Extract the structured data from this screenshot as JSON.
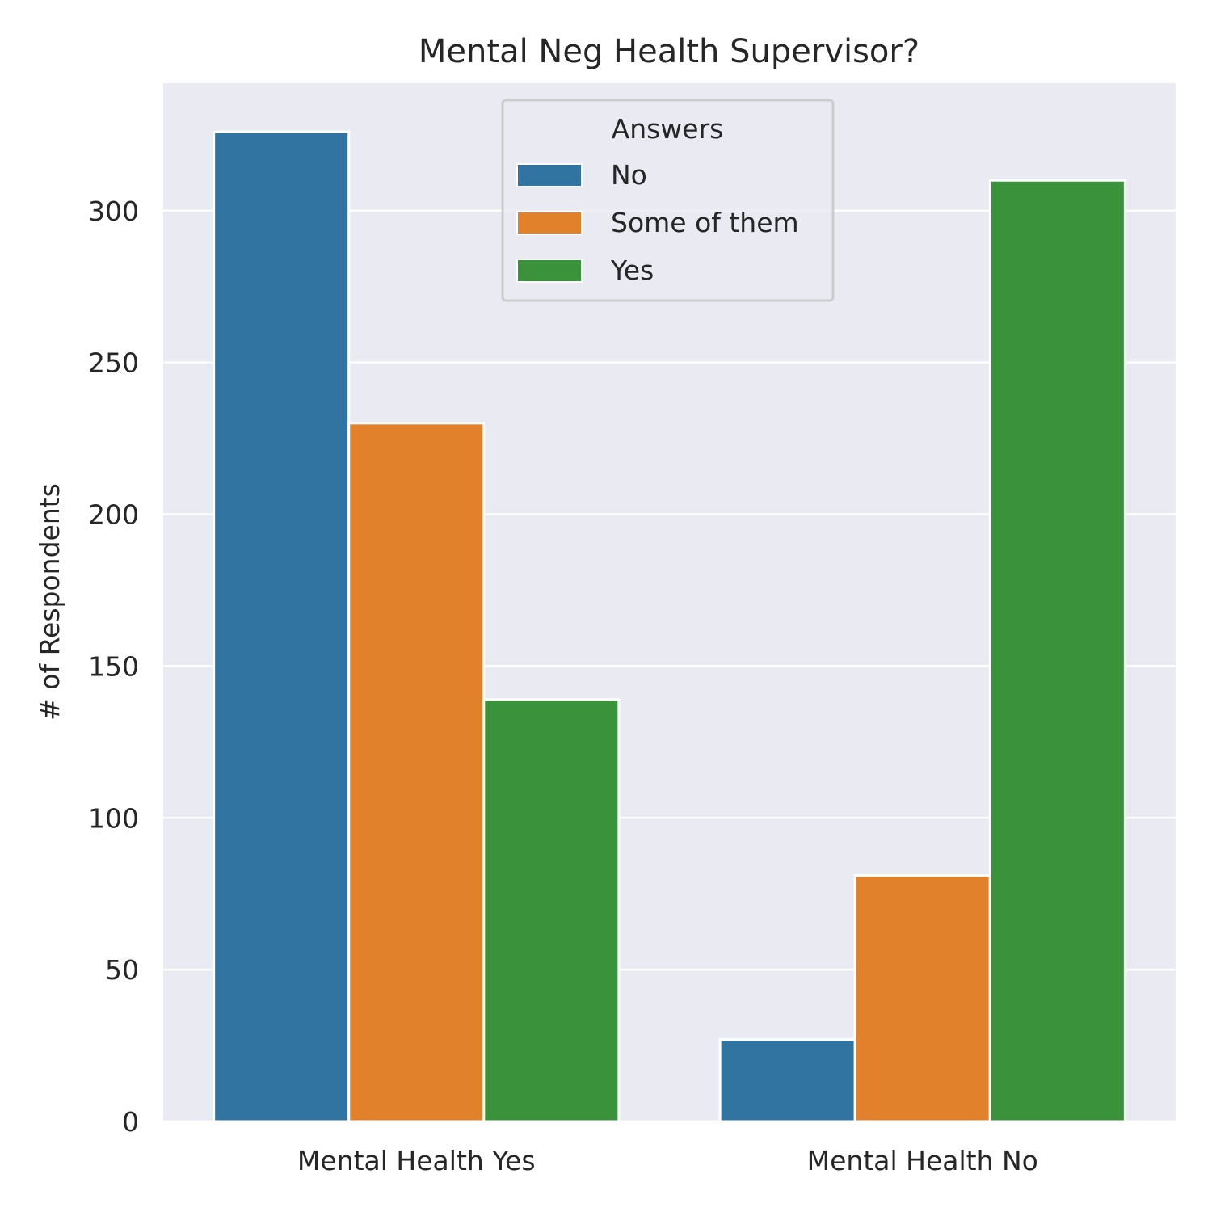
{
  "chart_data": {
    "type": "bar",
    "title": "Mental Neg Health Supervisor?",
    "xlabel": "",
    "ylabel": "# of Respondents",
    "categories": [
      "Mental Health Yes",
      "Mental Health No"
    ],
    "series": [
      {
        "name": "No",
        "values": [
          326,
          27
        ],
        "color": "#3274a1"
      },
      {
        "name": "Some of them",
        "values": [
          230,
          81
        ],
        "color": "#e1812c"
      },
      {
        "name": "Yes",
        "values": [
          139,
          310
        ],
        "color": "#3a923a"
      }
    ],
    "ylim": [
      0,
      342
    ],
    "yticks": [
      0,
      50,
      100,
      150,
      200,
      250,
      300
    ],
    "grid": true,
    "legend": {
      "title": "Answers",
      "position": "top-center"
    },
    "background_color": "#eaeaf2"
  }
}
